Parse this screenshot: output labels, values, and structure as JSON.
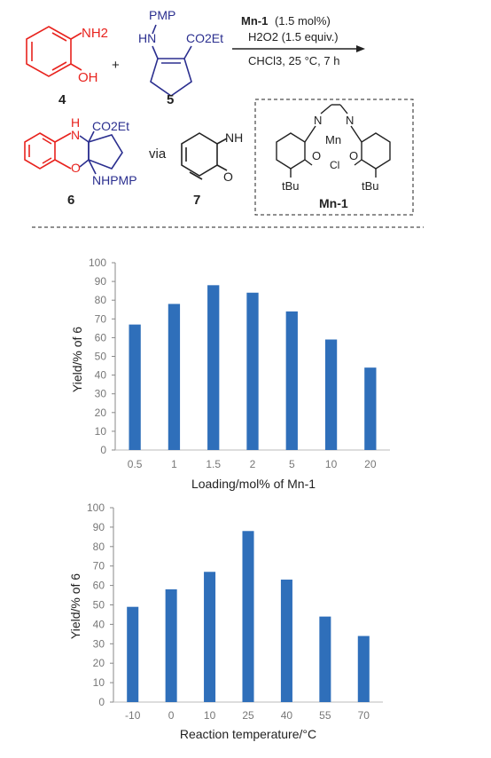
{
  "scheme": {
    "reagent_4_label": "4",
    "reagent_5_label": "5",
    "product_6_label": "6",
    "intermediate_7_label": "7",
    "plus": "+",
    "via": "via",
    "conditions": {
      "catalyst_name": "Mn-1",
      "catalyst_amount": "(1.5 mol%)",
      "oxidant": "H2O2 (1.5 equiv.)",
      "solvent_temp_time": "CHCl3, 25 °C, 7 h"
    },
    "groups": {
      "nh2": "NH2",
      "oh": "OH",
      "pmp": "PMP",
      "hn": "HN",
      "co2et": "CO2Et",
      "h": "H",
      "n": "N",
      "o": "O",
      "nhpmp": "NHPMP",
      "nh": "NH",
      "o7": "O",
      "mn": "Mn",
      "cl": "Cl",
      "tbu": "tBu",
      "catalyst_label": "Mn-1"
    },
    "colors": {
      "red": "#e8231e",
      "blue": "#2b2f8f",
      "black": "#222222"
    }
  },
  "chart_data": [
    {
      "type": "bar",
      "categories": [
        "0.5",
        "1",
        "1.5",
        "2",
        "5",
        "10",
        "20"
      ],
      "values": [
        67,
        78,
        88,
        84,
        74,
        59,
        44
      ],
      "title": "",
      "xlabel": "Loading/mol% of Mn-1",
      "ylabel": "Yield/% of 6",
      "ylim": [
        0,
        100
      ],
      "yticks": [
        "0",
        "10",
        "20",
        "30",
        "40",
        "50",
        "60",
        "70",
        "80",
        "90",
        "100"
      ],
      "bar_color": "#2f6fba",
      "grid": false
    },
    {
      "type": "bar",
      "categories": [
        "-10",
        "0",
        "10",
        "25",
        "40",
        "55",
        "70"
      ],
      "values": [
        49,
        58,
        67,
        88,
        63,
        44,
        34
      ],
      "title": "",
      "xlabel": "Reaction temperature/°C",
      "ylabel": "Yield/% of 6",
      "ylim": [
        0,
        100
      ],
      "yticks": [
        "0",
        "10",
        "20",
        "30",
        "40",
        "50",
        "60",
        "70",
        "80",
        "90",
        "100"
      ],
      "bar_color": "#2f6fba",
      "grid": false
    }
  ]
}
